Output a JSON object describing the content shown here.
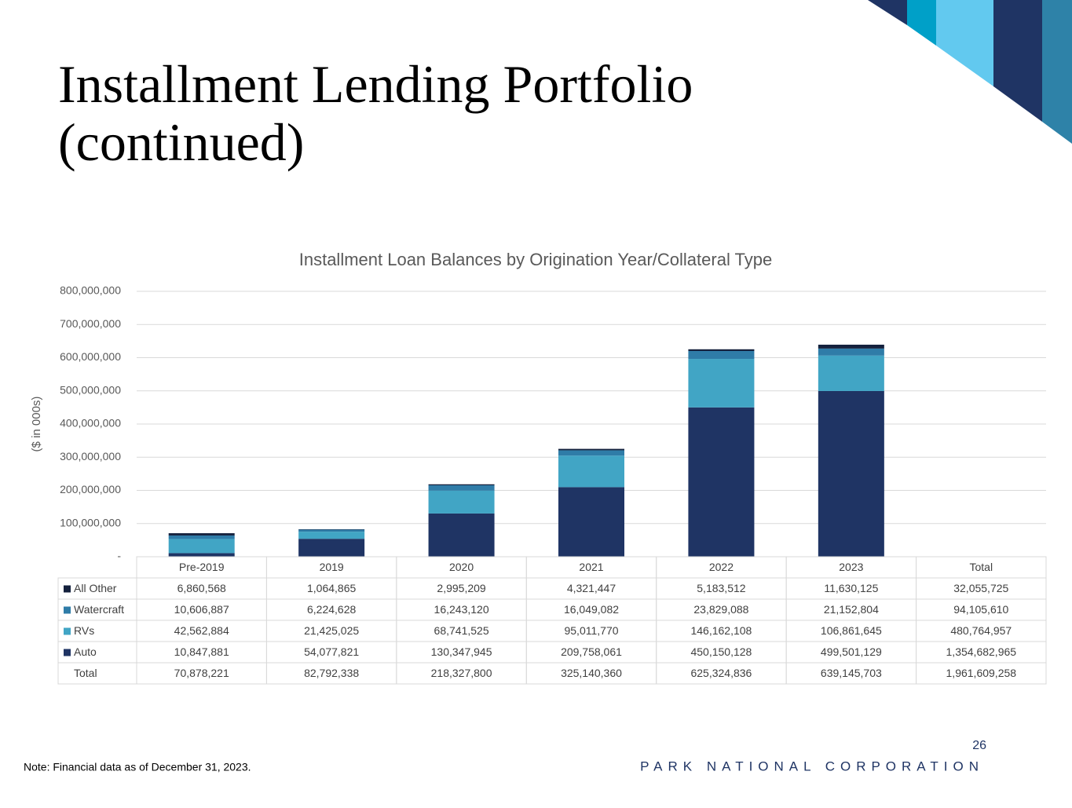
{
  "title": "Installment Lending Portfolio (continued)",
  "footnote": "Note: Financial data as of December 31, 2023.",
  "page_number": "26",
  "company": "PARK NATIONAL CORPORATION",
  "chart_data": {
    "type": "bar",
    "stacked": true,
    "title": "Installment Loan Balances by Origination Year/Collateral Type",
    "y_label": "($ in 000s)",
    "categories": [
      "Pre-2019",
      "2019",
      "2020",
      "2021",
      "2022",
      "2023"
    ],
    "ylim": [
      0,
      800000000
    ],
    "yticks": [
      {
        "value": 0,
        "label": "-"
      },
      {
        "value": 100000000,
        "label": "100,000,000"
      },
      {
        "value": 200000000,
        "label": "200,000,000"
      },
      {
        "value": 300000000,
        "label": "300,000,000"
      },
      {
        "value": 400000000,
        "label": "400,000,000"
      },
      {
        "value": 500000000,
        "label": "500,000,000"
      },
      {
        "value": 600000000,
        "label": "600,000,000"
      },
      {
        "value": 700000000,
        "label": "700,000,000"
      },
      {
        "value": 800000000,
        "label": "800,000,000"
      }
    ],
    "grid": true,
    "total_header": "Total",
    "series": [
      {
        "name": "Auto",
        "color": "#1f3464",
        "values": [
          10847881,
          54077821,
          130347945,
          209758061,
          450150128,
          499501129
        ],
        "value_labels": [
          "10,847,881",
          "54,077,821",
          "130,347,945",
          "209,758,061",
          "450,150,128",
          "499,501,129"
        ],
        "total": 1354682965,
        "total_label": "1,354,682,965"
      },
      {
        "name": "RVs",
        "color": "#41a5c5",
        "values": [
          42562884,
          21425025,
          68741525,
          95011770,
          146162108,
          106861645
        ],
        "value_labels": [
          "42,562,884",
          "21,425,025",
          "68,741,525",
          "95,011,770",
          "146,162,108",
          "106,861,645"
        ],
        "total": 480764957,
        "total_label": "480,764,957"
      },
      {
        "name": "Watercraft",
        "color": "#2f7ca8",
        "values": [
          10606887,
          6224628,
          16243120,
          16049082,
          23829088,
          21152804
        ],
        "value_labels": [
          "10,606,887",
          "6,224,628",
          "16,243,120",
          "16,049,082",
          "23,829,088",
          "21,152,804"
        ],
        "total": 94105610,
        "total_label": "94,105,610"
      },
      {
        "name": "All Other",
        "color": "#14213d",
        "values": [
          6860568,
          1064865,
          2995209,
          4321447,
          5183512,
          11630125
        ],
        "value_labels": [
          "6,860,568",
          "1,064,865",
          "2,995,209",
          "4,321,447",
          "5,183,512",
          "11,630,125"
        ],
        "total": 32055725,
        "total_label": "32,055,725"
      }
    ],
    "totals": {
      "name": "Total",
      "values": [
        70878221,
        82792338,
        218327800,
        325140360,
        625324836,
        639145703
      ],
      "value_labels": [
        "70,878,221",
        "82,792,338",
        "218,327,800",
        "325,140,360",
        "625,324,836",
        "639,145,703"
      ],
      "grand_total": 1961609258,
      "grand_total_label": "1,961,609,258"
    }
  }
}
